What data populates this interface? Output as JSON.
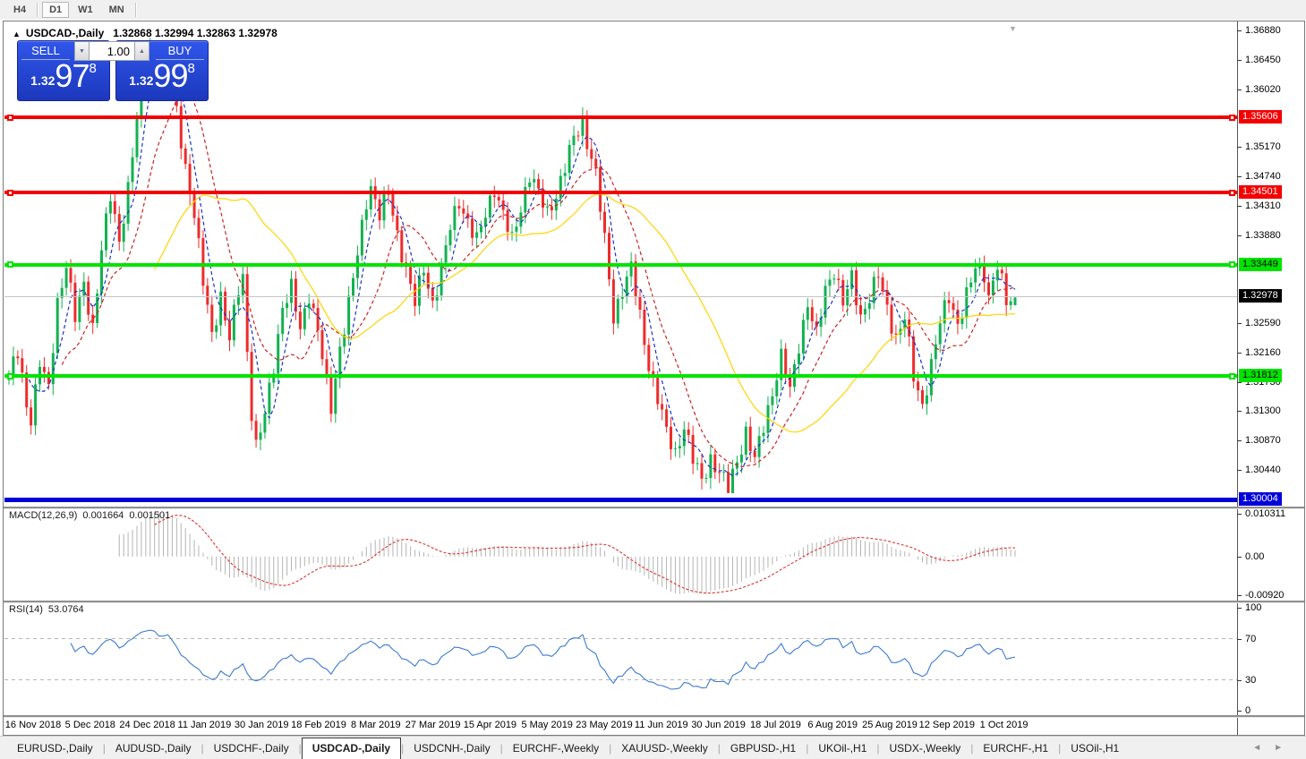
{
  "toolbar": {
    "timeframes": [
      {
        "label": "H4",
        "active": false
      },
      {
        "label": "D1",
        "active": true
      },
      {
        "label": "W1",
        "active": false
      },
      {
        "label": "MN",
        "active": false
      }
    ]
  },
  "chart": {
    "collapse_marker": "▲",
    "symbol_title": "USDCAD-,Daily",
    "title_values": "1.32868 1.32994 1.32863 1.32978",
    "trade_panel": {
      "sell_label": "SELL",
      "buy_label": "BUY",
      "volume": "1.00",
      "spinner_down": "▼",
      "spinner_up": "▲",
      "sell_price": {
        "prefix": "1.32",
        "big": "97",
        "sup": "8"
      },
      "buy_price": {
        "prefix": "1.32",
        "big": "99",
        "sup": "8"
      }
    },
    "shift_marker": "▼"
  },
  "chart_data": {
    "type": "candlestick",
    "symbol": "USDCAD-",
    "timeframe": "Daily",
    "title": "USDCAD-,Daily",
    "last_ohlc": {
      "open": 1.32868,
      "high": 1.32994,
      "low": 1.32863,
      "close": 1.32978
    },
    "ylim": [
      1.299,
      1.37
    ],
    "y_ticks": [
      "1.36880",
      "1.36450",
      "1.36020",
      "1.35170",
      "1.34740",
      "1.34310",
      "1.33880",
      "1.32590",
      "1.32160",
      "1.31730",
      "1.31300",
      "1.30870",
      "1.30440"
    ],
    "levels": [
      {
        "value": 1.35606,
        "label": "1.35606",
        "color": "#f40000",
        "text_color": "#ffffff",
        "thickness": 4,
        "squares": true
      },
      {
        "value": 1.34501,
        "label": "1.34501",
        "color": "#f40000",
        "text_color": "#ffffff",
        "thickness": 4,
        "squares": true
      },
      {
        "value": 1.33449,
        "label": "1.33449",
        "color": "#00e400",
        "text_color": "#000000",
        "thickness": 4,
        "squares": true
      },
      {
        "value": 1.31812,
        "label": "1.31812",
        "color": "#00e400",
        "text_color": "#000000",
        "thickness": 4,
        "squares": true
      },
      {
        "value": 1.30004,
        "label": "1.30004",
        "color": "#0000d8",
        "text_color": "#ffffff",
        "thickness": 5,
        "squares": false
      }
    ],
    "current_price": {
      "value": 1.32978,
      "label": "1.32978"
    },
    "x_labels": [
      "16 Nov 2018",
      "5 Dec 2018",
      "24 Dec 2018",
      "11 Jan 2019",
      "30 Jan 2019",
      "18 Feb 2019",
      "8 Mar 2019",
      "27 Mar 2019",
      "15 Apr 2019",
      "5 May 2019",
      "23 May 2019",
      "11 Jun 2019",
      "30 Jun 2019",
      "18 Jul 2019",
      "6 Aug 2019",
      "25 Aug 2019",
      "12 Sep 2019",
      "1 Oct 2019"
    ],
    "n_candles": 229,
    "candle_colors": {
      "up": "#12b250",
      "down": "#ee2b2b"
    },
    "price_waypoints": [
      [
        0,
        1.3185
      ],
      [
        2,
        1.3215
      ],
      [
        4,
        1.314
      ],
      [
        5,
        1.3122
      ],
      [
        7,
        1.3205
      ],
      [
        9,
        1.316
      ],
      [
        11,
        1.329
      ],
      [
        13,
        1.335
      ],
      [
        15,
        1.3268
      ],
      [
        17,
        1.3315
      ],
      [
        19,
        1.3255
      ],
      [
        21,
        1.337
      ],
      [
        23,
        1.3445
      ],
      [
        25,
        1.338
      ],
      [
        27,
        1.346
      ],
      [
        29,
        1.356
      ],
      [
        31,
        1.3655
      ],
      [
        33,
        1.3664
      ],
      [
        35,
        1.3618
      ],
      [
        36,
        1.3655
      ],
      [
        38,
        1.357
      ],
      [
        40,
        1.349
      ],
      [
        42,
        1.342
      ],
      [
        44,
        1.332
      ],
      [
        46,
        1.3245
      ],
      [
        48,
        1.33
      ],
      [
        50,
        1.3235
      ],
      [
        52,
        1.331
      ],
      [
        53,
        1.333
      ],
      [
        54,
        1.322
      ],
      [
        55,
        1.313
      ],
      [
        56,
        1.3078
      ],
      [
        58,
        1.3125
      ],
      [
        60,
        1.32
      ],
      [
        62,
        1.3285
      ],
      [
        64,
        1.331
      ],
      [
        66,
        1.325
      ],
      [
        68,
        1.3305
      ],
      [
        70,
        1.325
      ],
      [
        72,
        1.317
      ],
      [
        73,
        1.3135
      ],
      [
        75,
        1.3225
      ],
      [
        77,
        1.329
      ],
      [
        79,
        1.336
      ],
      [
        81,
        1.344
      ],
      [
        82,
        1.3462
      ],
      [
        84,
        1.342
      ],
      [
        86,
        1.345
      ],
      [
        88,
        1.339
      ],
      [
        90,
        1.334
      ],
      [
        92,
        1.329
      ],
      [
        94,
        1.334
      ],
      [
        96,
        1.329
      ],
      [
        98,
        1.334
      ],
      [
        100,
        1.34
      ],
      [
        102,
        1.344
      ],
      [
        104,
        1.341
      ],
      [
        106,
        1.338
      ],
      [
        108,
        1.342
      ],
      [
        110,
        1.346
      ],
      [
        112,
        1.342
      ],
      [
        114,
        1.338
      ],
      [
        116,
        1.343
      ],
      [
        118,
        1.348
      ],
      [
        120,
        1.345
      ],
      [
        122,
        1.342
      ],
      [
        124,
        1.345
      ],
      [
        126,
        1.349
      ],
      [
        128,
        1.353
      ],
      [
        130,
        1.3555
      ],
      [
        131,
        1.3528
      ],
      [
        133,
        1.348
      ],
      [
        135,
        1.338
      ],
      [
        137,
        1.327
      ],
      [
        139,
        1.331
      ],
      [
        141,
        1.334
      ],
      [
        143,
        1.327
      ],
      [
        145,
        1.32
      ],
      [
        147,
        1.315
      ],
      [
        149,
        1.31
      ],
      [
        151,
        1.307
      ],
      [
        153,
        1.311
      ],
      [
        155,
        1.306
      ],
      [
        157,
        1.303
      ],
      [
        159,
        1.3062
      ],
      [
        161,
        1.304
      ],
      [
        163,
        1.3018
      ],
      [
        165,
        1.306
      ],
      [
        167,
        1.31
      ],
      [
        169,
        1.3058
      ],
      [
        171,
        1.311
      ],
      [
        173,
        1.316
      ],
      [
        175,
        1.321
      ],
      [
        177,
        1.316
      ],
      [
        179,
        1.323
      ],
      [
        181,
        1.329
      ],
      [
        183,
        1.324
      ],
      [
        185,
        1.331
      ],
      [
        187,
        1.334
      ],
      [
        189,
        1.329
      ],
      [
        191,
        1.3325
      ],
      [
        193,
        1.327
      ],
      [
        195,
        1.33
      ],
      [
        197,
        1.333
      ],
      [
        199,
        1.328
      ],
      [
        201,
        1.324
      ],
      [
        203,
        1.327
      ],
      [
        205,
        1.318
      ],
      [
        207,
        1.314
      ],
      [
        209,
        1.32
      ],
      [
        211,
        1.326
      ],
      [
        213,
        1.33
      ],
      [
        215,
        1.326
      ],
      [
        217,
        1.33
      ],
      [
        219,
        1.334
      ],
      [
        221,
        1.3335
      ],
      [
        222,
        1.33
      ],
      [
        224,
        1.3345
      ],
      [
        226,
        1.329
      ],
      [
        228,
        1.32978
      ]
    ],
    "moving_averages": [
      {
        "period": 5,
        "color": "#1533cc",
        "style": "dashed"
      },
      {
        "period": 13,
        "color": "#cc2222",
        "style": "dashed"
      },
      {
        "period": 34,
        "color": "#ffd400",
        "style": "solid"
      }
    ],
    "macd": {
      "label": "MACD(12,26,9)",
      "fast": 12,
      "slow": 26,
      "signal_period": 9,
      "value_main": "0.001664",
      "value_signal": "0.001501",
      "ylim": [
        -0.0105,
        0.0115
      ],
      "ticks": [
        {
          "v": 0.010311,
          "t": "0.010311"
        },
        {
          "v": 0.0,
          "t": "0.00"
        },
        {
          "v": -0.0092,
          "t": "-0.00920"
        }
      ],
      "histogram_color": "#b4b4b4",
      "signal_color": "#e03030"
    },
    "rsi": {
      "label": "RSI(14)",
      "period": 14,
      "value": "53.0764",
      "ylim": [
        0,
        100
      ],
      "ticks": [
        100,
        70,
        30,
        0
      ],
      "guide_levels": [
        70,
        30
      ],
      "color": "#3c7ad2"
    }
  },
  "bottom_tabs": {
    "tabs": [
      {
        "label": "EURUSD-,Daily",
        "active": false
      },
      {
        "label": "AUDUSD-,Daily",
        "active": false
      },
      {
        "label": "USDCHF-,Daily",
        "active": false
      },
      {
        "label": "USDCAD-,Daily",
        "active": true
      },
      {
        "label": "USDCNH-,Daily",
        "active": false
      },
      {
        "label": "EURCHF-,Weekly",
        "active": false
      },
      {
        "label": "XAUUSD-,Weekly",
        "active": false
      },
      {
        "label": "GBPUSD-,H1",
        "active": false
      },
      {
        "label": "UKOil-,H1",
        "active": false
      },
      {
        "label": "USDX-,Weekly",
        "active": false
      },
      {
        "label": "EURCHF-,H1",
        "active": false
      },
      {
        "label": "USOil-,H1",
        "active": false
      }
    ],
    "left_arrow": "◄",
    "right_arrow": "►"
  }
}
